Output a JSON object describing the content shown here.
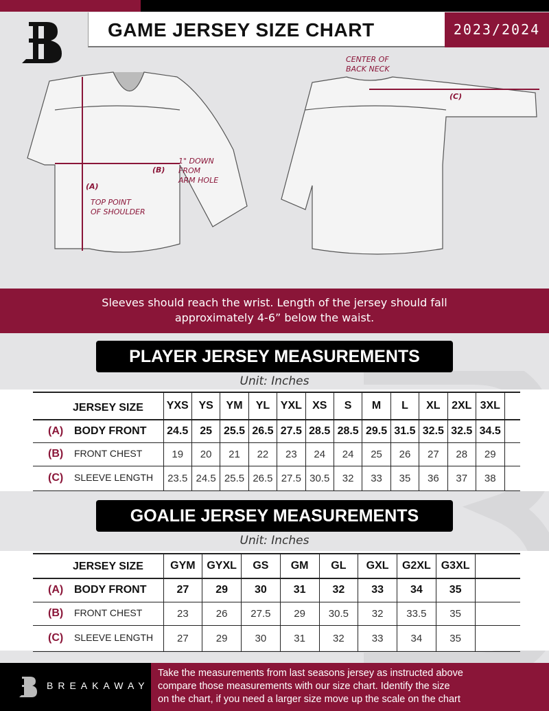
{
  "header": {
    "title": "GAME JERSEY SIZE CHART",
    "season": "2023/2024",
    "logo": "B"
  },
  "diagram": {
    "center_back_neck": [
      "CENTER OF",
      "BACK NECK"
    ],
    "label_c": "(C)",
    "label_b": "(B)",
    "label_a": "(A)",
    "arm_hole_note": [
      "1\" DOWN",
      "FROM",
      "ARM HOLE"
    ],
    "shoulder_note": [
      "TOP POINT",
      "OF SHOULDER"
    ]
  },
  "advice": [
    "Sleeves should reach the wrist. Length of the jersey should fall",
    "approximately 4-6” below the waist."
  ],
  "player": {
    "title": "PLAYER JERSEY MEASUREMENTS",
    "unit": "Unit: Inches",
    "size_label": "JERSEY SIZE",
    "sizes": [
      "YXS",
      "YS",
      "YM",
      "YL",
      "YXL",
      "XS",
      "S",
      "M",
      "L",
      "XL",
      "2XL",
      "3XL"
    ],
    "rows": [
      {
        "key": "(A)",
        "label": "BODY FRONT",
        "values": [
          "24.5",
          "25",
          "25.5",
          "26.5",
          "27.5",
          "28.5",
          "28.5",
          "29.5",
          "31.5",
          "32.5",
          "32.5",
          "34.5"
        ]
      },
      {
        "key": "(B)",
        "label": "FRONT CHEST",
        "values": [
          "19",
          "20",
          "21",
          "22",
          "23",
          "24",
          "24",
          "25",
          "26",
          "27",
          "28",
          "29"
        ]
      },
      {
        "key": "(C)",
        "label": "SLEEVE LENGTH",
        "values": [
          "23.5",
          "24.5",
          "25.5",
          "26.5",
          "27.5",
          "30.5",
          "32",
          "33",
          "35",
          "36",
          "37",
          "38"
        ]
      }
    ]
  },
  "goalie": {
    "title": "GOALIE JERSEY MEASUREMENTS",
    "unit": "Unit: Inches",
    "size_label": "JERSEY SIZE",
    "sizes": [
      "GYM",
      "GYXL",
      "GS",
      "GM",
      "GL",
      "GXL",
      "G2XL",
      "G3XL"
    ],
    "rows": [
      {
        "key": "(A)",
        "label": "BODY FRONT",
        "values": [
          "27",
          "29",
          "30",
          "31",
          "32",
          "33",
          "34",
          "35"
        ]
      },
      {
        "key": "(B)",
        "label": "FRONT CHEST",
        "values": [
          "23",
          "26",
          "27.5",
          "29",
          "30.5",
          "32",
          "33.5",
          "35"
        ]
      },
      {
        "key": "(C)",
        "label": "SLEEVE LENGTH",
        "values": [
          "27",
          "29",
          "30",
          "31",
          "32",
          "33",
          "34",
          "35"
        ]
      }
    ]
  },
  "footer": {
    "brand": "BREAKAWAY",
    "text": [
      "Take the measurements from last seasons jersey as instructed above",
      "compare those measurements  with our size chart. Identify the size",
      "on the chart, if you need a larger size move up the scale on the chart"
    ]
  },
  "colors": {
    "accent": "#8a1538",
    "dark": "#000000",
    "background": "#e4e4e6"
  }
}
